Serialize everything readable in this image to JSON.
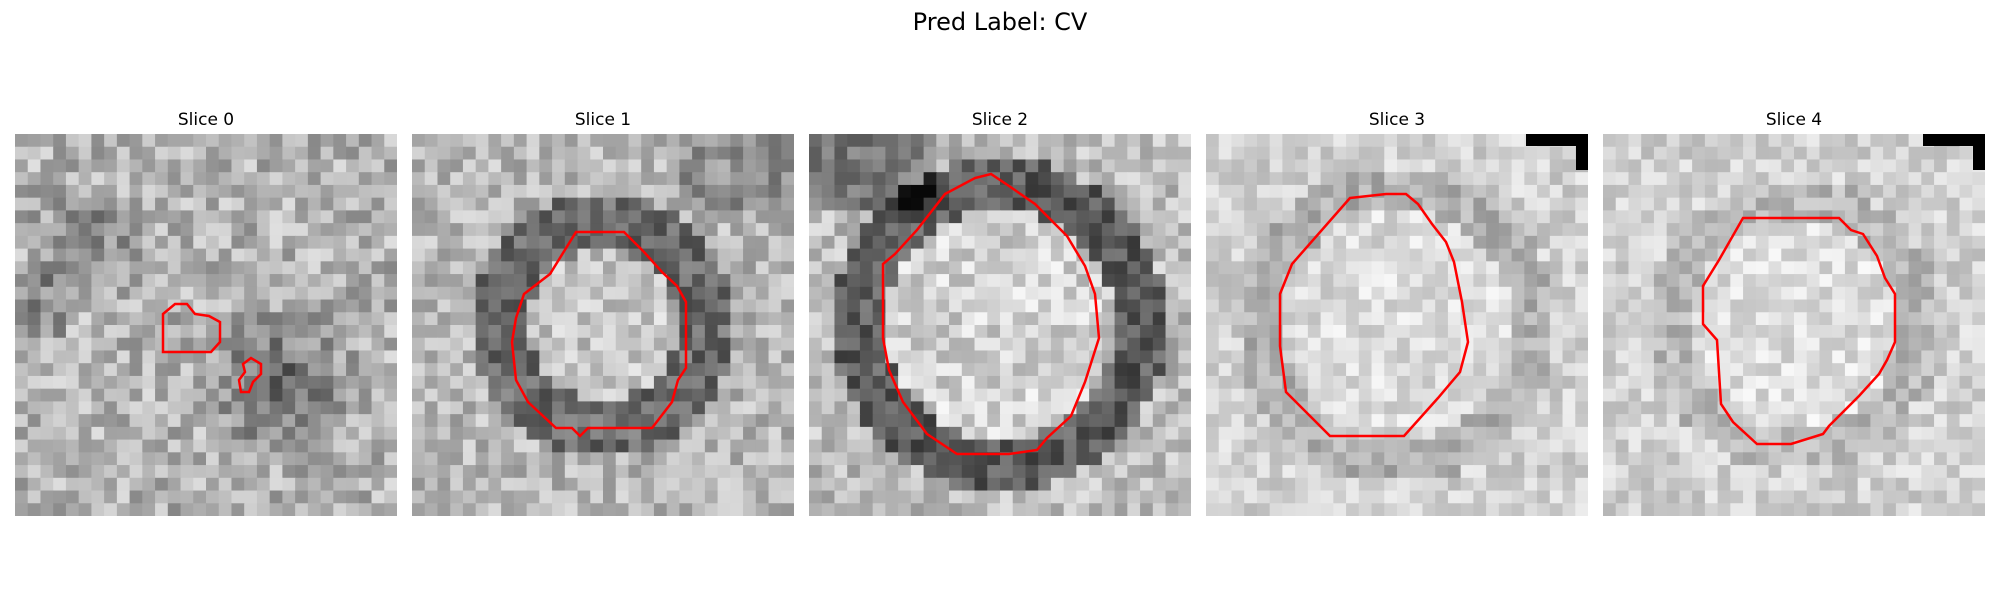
{
  "figure": {
    "suptitle": "Pred Label: CV"
  },
  "colors": {
    "contour": "#ff0000",
    "background": "#ffffff"
  },
  "slices": [
    {
      "title": "Slice 0",
      "seed": 11,
      "pattern": "blob-dark",
      "corner_mark": false
    },
    {
      "title": "Slice 1",
      "seed": 23,
      "pattern": "ring-medium",
      "corner_mark": false
    },
    {
      "title": "Slice 2",
      "seed": 37,
      "pattern": "ring-dark",
      "corner_mark": false
    },
    {
      "title": "Slice 3",
      "seed": 51,
      "pattern": "soft-disk",
      "corner_mark": true
    },
    {
      "title": "Slice 4",
      "seed": 67,
      "pattern": "faint-disk",
      "corner_mark": true
    }
  ]
}
